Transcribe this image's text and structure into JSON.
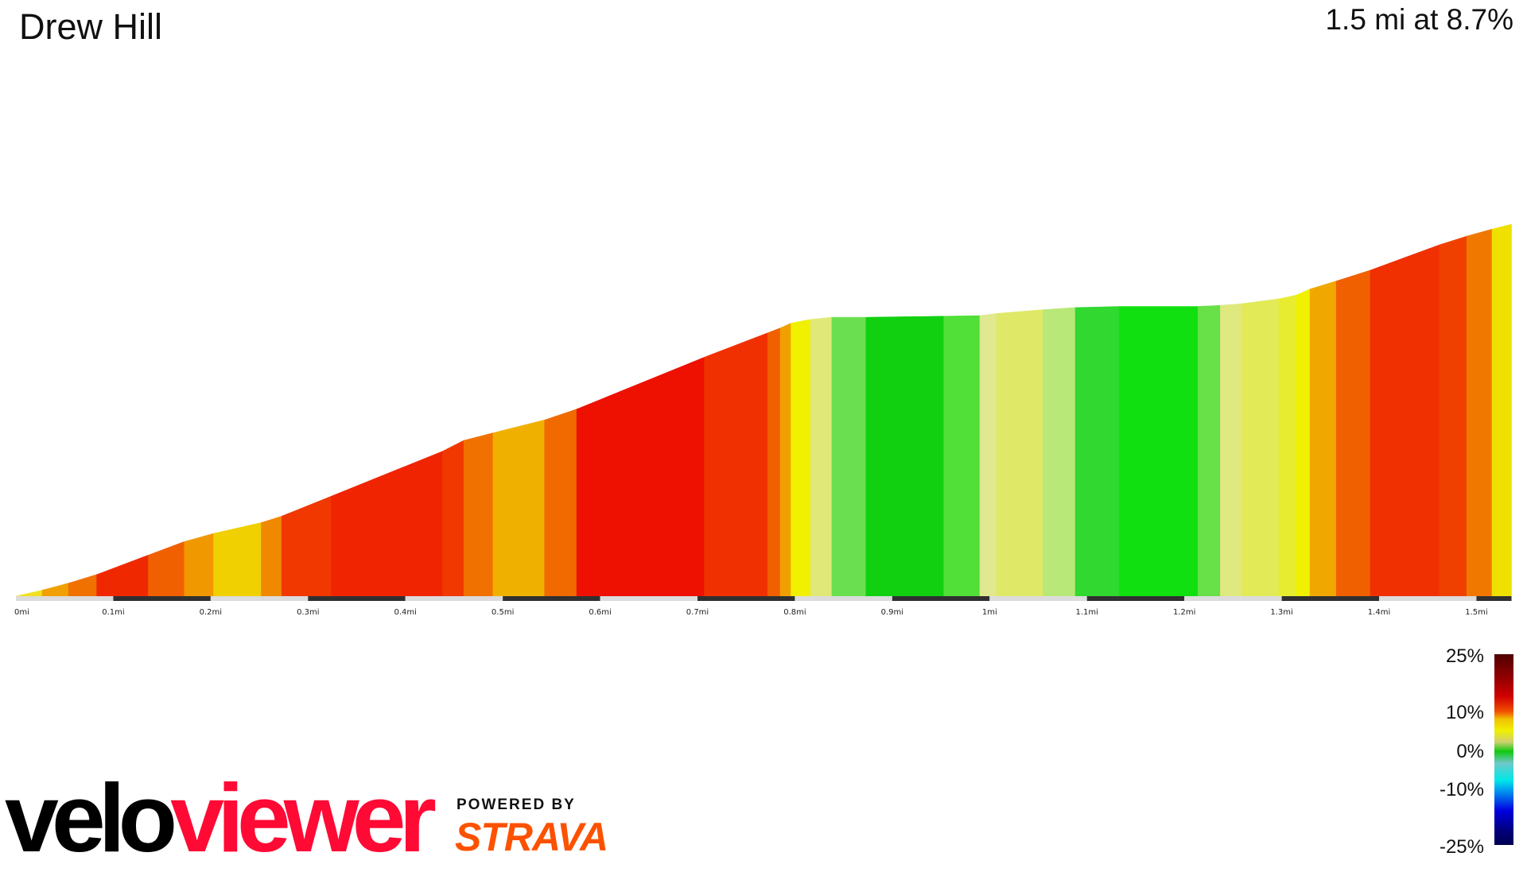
{
  "header": {
    "title": "Drew Hill",
    "summary": "1.5 mi at 8.7%"
  },
  "chart_data": {
    "type": "area",
    "title": "Drew Hill",
    "xlabel": "",
    "ylabel": "",
    "x_unit": "mi",
    "xlim": [
      0,
      1.536
    ],
    "x_ticks": [
      "0mi",
      "0.1mi",
      "0.2mi",
      "0.3mi",
      "0.4mi",
      "0.5mi",
      "0.6mi",
      "0.7mi",
      "0.8mi",
      "0.9mi",
      "1mi",
      "1.1mi",
      "1.2mi",
      "1.3mi",
      "1.4mi",
      "1.5mi"
    ],
    "profile_elevation_gain_ft_approx": [
      [
        0,
        0
      ],
      [
        0.027,
        11
      ],
      [
        0.054,
        24
      ],
      [
        0.083,
        40
      ],
      [
        0.136,
        76
      ],
      [
        0.173,
        101
      ],
      [
        0.203,
        116
      ],
      [
        0.252,
        136
      ],
      [
        0.273,
        148
      ],
      [
        0.324,
        185
      ],
      [
        0.438,
        268
      ],
      [
        0.46,
        288
      ],
      [
        0.49,
        302
      ],
      [
        0.543,
        326
      ],
      [
        0.576,
        346
      ],
      [
        0.707,
        442
      ],
      [
        0.772,
        487
      ],
      [
        0.785,
        496
      ],
      [
        0.796,
        505
      ],
      [
        0.816,
        512
      ],
      [
        0.838,
        516
      ],
      [
        0.873,
        516
      ],
      [
        0.953,
        518
      ],
      [
        0.99,
        519
      ],
      [
        1.007,
        523
      ],
      [
        1.055,
        530
      ],
      [
        1.088,
        534
      ],
      [
        1.133,
        536
      ],
      [
        1.214,
        536
      ],
      [
        1.237,
        538
      ],
      [
        1.259,
        541
      ],
      [
        1.297,
        550
      ],
      [
        1.315,
        557
      ],
      [
        1.329,
        568
      ],
      [
        1.356,
        583
      ],
      [
        1.391,
        603
      ],
      [
        1.462,
        650
      ],
      [
        1.49,
        666
      ],
      [
        1.516,
        679
      ],
      [
        1.536,
        688
      ]
    ],
    "segment_colors": [
      "#f0e020",
      "#f0a000",
      "#f07000",
      "#f02800",
      "#f06000",
      "#f09800",
      "#f0d000",
      "#f08800",
      "#f03800",
      "#f02400",
      "#f03800",
      "#f07000",
      "#f0b000",
      "#f06a00",
      "#ee1000",
      "#f03000",
      "#f06000",
      "#f0a000",
      "#f0f000",
      "#e0e878",
      "#6ae050",
      "#10d010",
      "#50e038",
      "#e0e890",
      "#e0e868",
      "#b8e878",
      "#30d830",
      "#10e010",
      "#68e048",
      "#e0e880",
      "#e2ea58",
      "#e8ec30",
      "#f0f000",
      "#f0a800",
      "#f06000",
      "#f03000",
      "#f04000",
      "#f07800",
      "#f0e000"
    ],
    "legend": {
      "title": "",
      "labels": [
        "25%",
        "10%",
        "0%",
        "-10%",
        "-25%"
      ],
      "values": [
        25,
        10,
        0,
        -10,
        -25
      ],
      "placement": "bottom-right"
    },
    "grid": false
  },
  "branding": {
    "logo_part1": "velo",
    "logo_part2": "viewer",
    "powered_by": "POWERED BY",
    "strava": "STRAVA",
    "logo_color_black": "#000000",
    "logo_color_red": "#ff0a35",
    "strava_color": "#fc5200"
  }
}
